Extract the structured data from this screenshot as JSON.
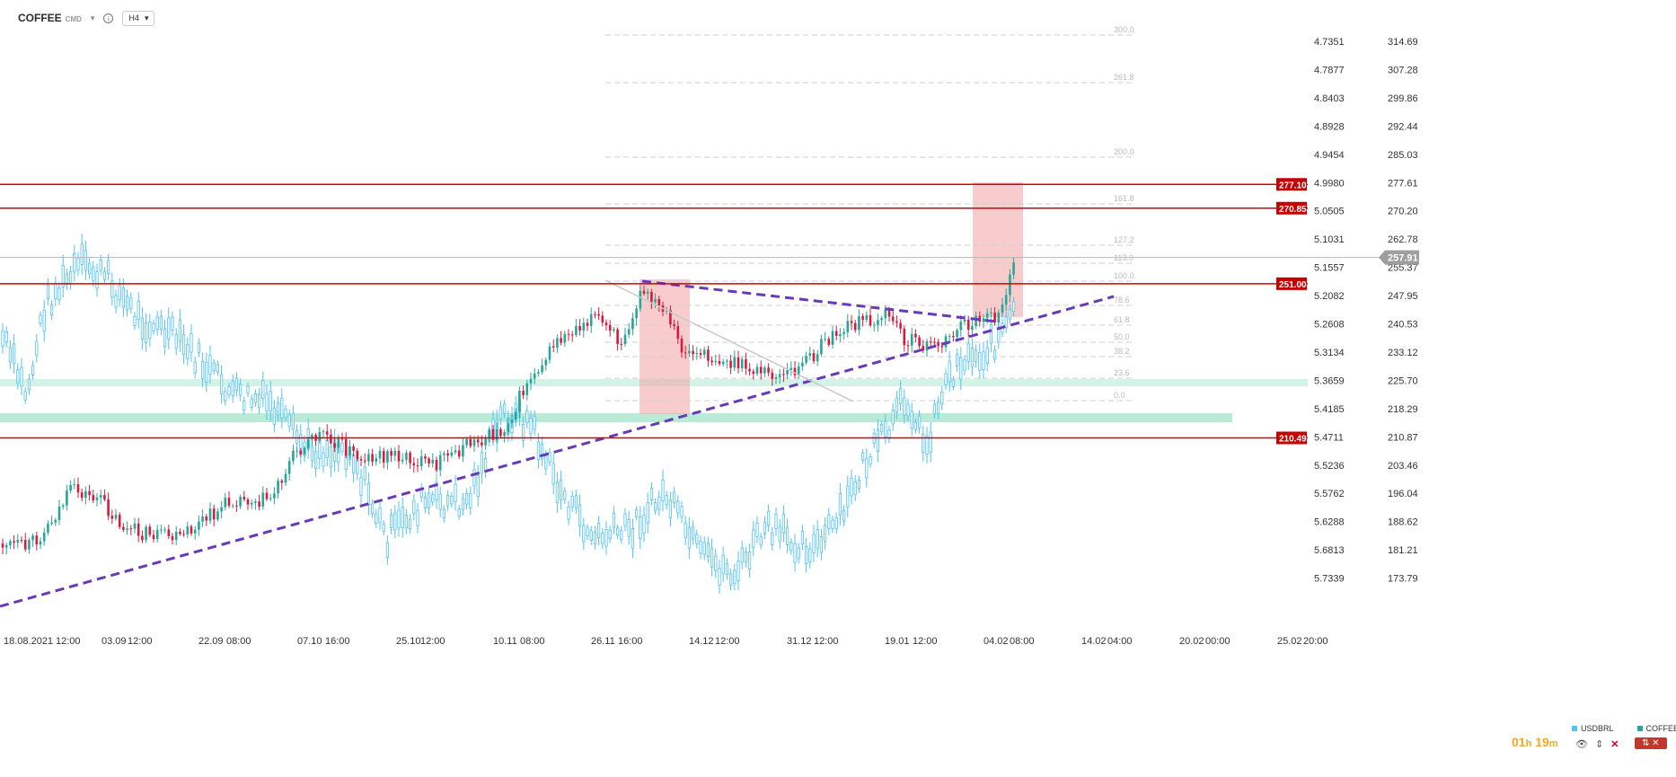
{
  "toolbar": {
    "symbol": "COFFEE",
    "market": "CMD",
    "timeframe": "H4"
  },
  "chart_data": {
    "type": "candlestick",
    "series": [
      {
        "name": "COFFEE",
        "axis": "right",
        "color_up": "#26a69a",
        "color_down": "#ef5350"
      },
      {
        "name": "USDBRL",
        "axis": "inner",
        "color": "#4fc3f7"
      }
    ],
    "right_axis_ticks": [
      "314.69",
      "307.28",
      "299.86",
      "292.44",
      "285.03",
      "277.61",
      "270.20",
      "262.78",
      "255.37",
      "247.95",
      "240.53",
      "233.12",
      "225.70",
      "218.29",
      "210.87",
      "203.46",
      "196.04",
      "188.62",
      "181.21",
      "173.79"
    ],
    "inner_axis_ticks": [
      "4.7351",
      "4.7877",
      "4.8403",
      "4.8928",
      "4.9454",
      "4.9980",
      "5.0505",
      "5.1031",
      "5.1557",
      "5.2082",
      "5.2608",
      "5.3134",
      "5.3659",
      "5.4185",
      "5.4711",
      "5.5236",
      "5.5762",
      "5.6288",
      "5.6813",
      "5.7339"
    ],
    "x_ticks": [
      "18.08.2021",
      "12:00",
      "03.09",
      "12:00",
      "22.09",
      "08:00",
      "07.10",
      "16:00",
      "25.10",
      "12:00",
      "10.11",
      "08:00",
      "26.11",
      "16:00",
      "14.12",
      "12:00",
      "31.12",
      "12:00",
      "19.01",
      "12:00",
      "04.02",
      "08:00",
      "14.02",
      "04:00",
      "20.02",
      "00:00",
      "25.02",
      "20:00"
    ],
    "horizontal_levels": [
      {
        "value": 277.1,
        "label": "277.10"
      },
      {
        "value": 270.85,
        "label": "270.85"
      },
      {
        "value": 251.0,
        "label": "251.00"
      },
      {
        "value": 210.49,
        "label": "210.49"
      }
    ],
    "current_price": {
      "value": 257.91,
      "label": "257.91"
    },
    "fibonacci_levels": [
      "300.0",
      "261.8",
      "200.0",
      "161.8",
      "127.2",
      "113.0",
      "100.0",
      "78.6",
      "61.8",
      "50.0",
      "38.2",
      "23.6",
      "0.0"
    ]
  },
  "timer": {
    "hours": "01",
    "h_unit": "h",
    "minutes": "19",
    "m_unit": "m"
  },
  "legend": {
    "usdbrl": "USDBRL",
    "coffee": "COFFEE"
  },
  "colors": {
    "up": "#26a69a",
    "down": "#d81b3c",
    "usdbrl": "#4fc3f7",
    "level": "#d50000",
    "trend": "#673ab7"
  }
}
